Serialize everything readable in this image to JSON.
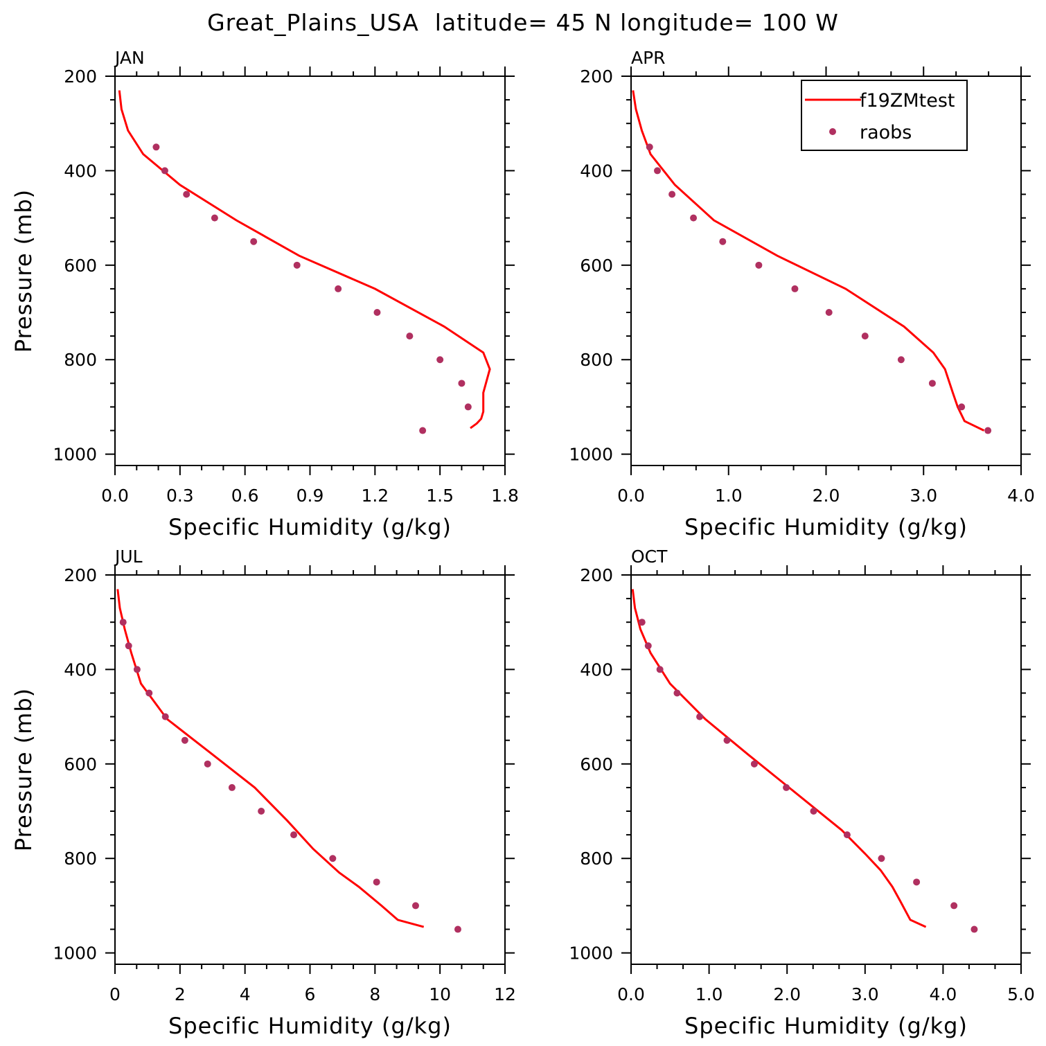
{
  "figure": {
    "title": "Great_Plains_USA  latitude= 45 N longitude= 100 W"
  },
  "legend": {
    "model_label": "f19ZMtest",
    "obs_label": "raobs",
    "model_color": "#ff0000",
    "obs_color": "#b03060"
  },
  "chart_data": [
    {
      "type": "line",
      "title": "JAN",
      "xlabel": "Specific Humidity (g/kg)",
      "ylabel": "Pressure (mb)",
      "xlim": [
        0.0,
        1.8
      ],
      "ylim": [
        200,
        1000
      ],
      "y_inverted": true,
      "xticks": [
        "0.0",
        "0.3",
        "0.6",
        "0.9",
        "1.2",
        "1.5",
        "1.8"
      ],
      "yticks": [
        "200",
        "400",
        "600",
        "800",
        "1000"
      ],
      "series": [
        {
          "name": "f19ZMtest",
          "style": "line",
          "x": [
            0.02,
            0.03,
            0.06,
            0.13,
            0.3,
            0.56,
            0.85,
            1.2,
            1.52,
            1.7,
            1.73,
            1.7,
            1.7,
            1.69,
            1.67,
            1.64
          ],
          "y": [
            230,
            270,
            315,
            365,
            430,
            505,
            580,
            650,
            730,
            785,
            820,
            870,
            910,
            925,
            935,
            945
          ]
        },
        {
          "name": "raobs",
          "style": "markers",
          "x": [
            0.19,
            0.23,
            0.33,
            0.46,
            0.64,
            0.84,
            1.03,
            1.21,
            1.36,
            1.5,
            1.6,
            1.63,
            1.42
          ],
          "y": [
            350,
            400,
            450,
            500,
            550,
            600,
            650,
            700,
            750,
            800,
            850,
            900,
            950
          ]
        }
      ]
    },
    {
      "type": "line",
      "title": "APR",
      "xlabel": "Specific Humidity (g/kg)",
      "ylabel": "",
      "xlim": [
        0.0,
        4.0
      ],
      "ylim": [
        200,
        1000
      ],
      "y_inverted": true,
      "xticks": [
        "0.0",
        "1.0",
        "2.0",
        "3.0",
        "4.0"
      ],
      "yticks": [
        "200",
        "400",
        "600",
        "800",
        "1000"
      ],
      "series": [
        {
          "name": "f19ZMtest",
          "style": "line",
          "x": [
            0.02,
            0.05,
            0.11,
            0.2,
            0.45,
            0.85,
            1.5,
            2.2,
            2.8,
            3.1,
            3.22,
            3.3,
            3.35,
            3.42,
            3.62
          ],
          "y": [
            230,
            270,
            315,
            365,
            430,
            505,
            580,
            650,
            730,
            785,
            820,
            870,
            900,
            930,
            950
          ]
        },
        {
          "name": "raobs",
          "style": "markers",
          "x": [
            0.19,
            0.27,
            0.42,
            0.64,
            0.94,
            1.31,
            1.68,
            2.03,
            2.4,
            2.77,
            3.09,
            3.39,
            3.66
          ],
          "y": [
            350,
            400,
            450,
            500,
            550,
            600,
            650,
            700,
            750,
            800,
            850,
            900,
            950
          ]
        }
      ]
    },
    {
      "type": "line",
      "title": "JUL",
      "xlabel": "Specific Humidity (g/kg)",
      "ylabel": "Pressure (mb)",
      "xlim": [
        0,
        12
      ],
      "ylim": [
        200,
        1000
      ],
      "y_inverted": true,
      "xticks": [
        "0",
        "2",
        "4",
        "6",
        "8",
        "10",
        "12"
      ],
      "yticks": [
        "200",
        "400",
        "600",
        "800",
        "1000"
      ],
      "series": [
        {
          "name": "f19ZMtest",
          "style": "line",
          "x": [
            0.08,
            0.15,
            0.3,
            0.5,
            0.8,
            1.6,
            3.0,
            4.3,
            5.3,
            6.1,
            6.9,
            7.5,
            8.2,
            8.7,
            9.5
          ],
          "y": [
            230,
            270,
            315,
            365,
            430,
            505,
            580,
            650,
            720,
            780,
            830,
            860,
            900,
            930,
            945
          ]
        },
        {
          "name": "raobs",
          "style": "markers",
          "x": [
            0.25,
            0.42,
            0.68,
            1.05,
            1.55,
            2.15,
            2.85,
            3.6,
            4.5,
            5.5,
            6.7,
            8.05,
            9.25,
            10.55
          ],
          "y": [
            300,
            350,
            400,
            450,
            500,
            550,
            600,
            650,
            700,
            750,
            800,
            850,
            900,
            950
          ]
        }
      ]
    },
    {
      "type": "line",
      "title": "OCT",
      "xlabel": "Specific Humidity (g/kg)",
      "ylabel": "",
      "xlim": [
        0.0,
        5.0
      ],
      "ylim": [
        200,
        1000
      ],
      "y_inverted": true,
      "xticks": [
        "0.0",
        "1.0",
        "2.0",
        "3.0",
        "4.0",
        "5.0"
      ],
      "yticks": [
        "200",
        "400",
        "600",
        "800",
        "1000"
      ],
      "series": [
        {
          "name": "f19ZMtest",
          "style": "line",
          "x": [
            0.02,
            0.05,
            0.12,
            0.25,
            0.5,
            0.95,
            1.5,
            2.1,
            2.7,
            3.0,
            3.2,
            3.35,
            3.45,
            3.58,
            3.78
          ],
          "y": [
            230,
            270,
            315,
            365,
            430,
            505,
            580,
            660,
            740,
            790,
            825,
            860,
            890,
            930,
            945
          ]
        },
        {
          "name": "raobs",
          "style": "markers",
          "x": [
            0.14,
            0.22,
            0.37,
            0.59,
            0.88,
            1.23,
            1.58,
            1.99,
            2.34,
            2.77,
            3.21,
            3.66,
            4.14,
            4.4
          ],
          "y": [
            300,
            350,
            400,
            450,
            500,
            550,
            600,
            650,
            700,
            750,
            800,
            850,
            900,
            950
          ]
        }
      ]
    }
  ]
}
